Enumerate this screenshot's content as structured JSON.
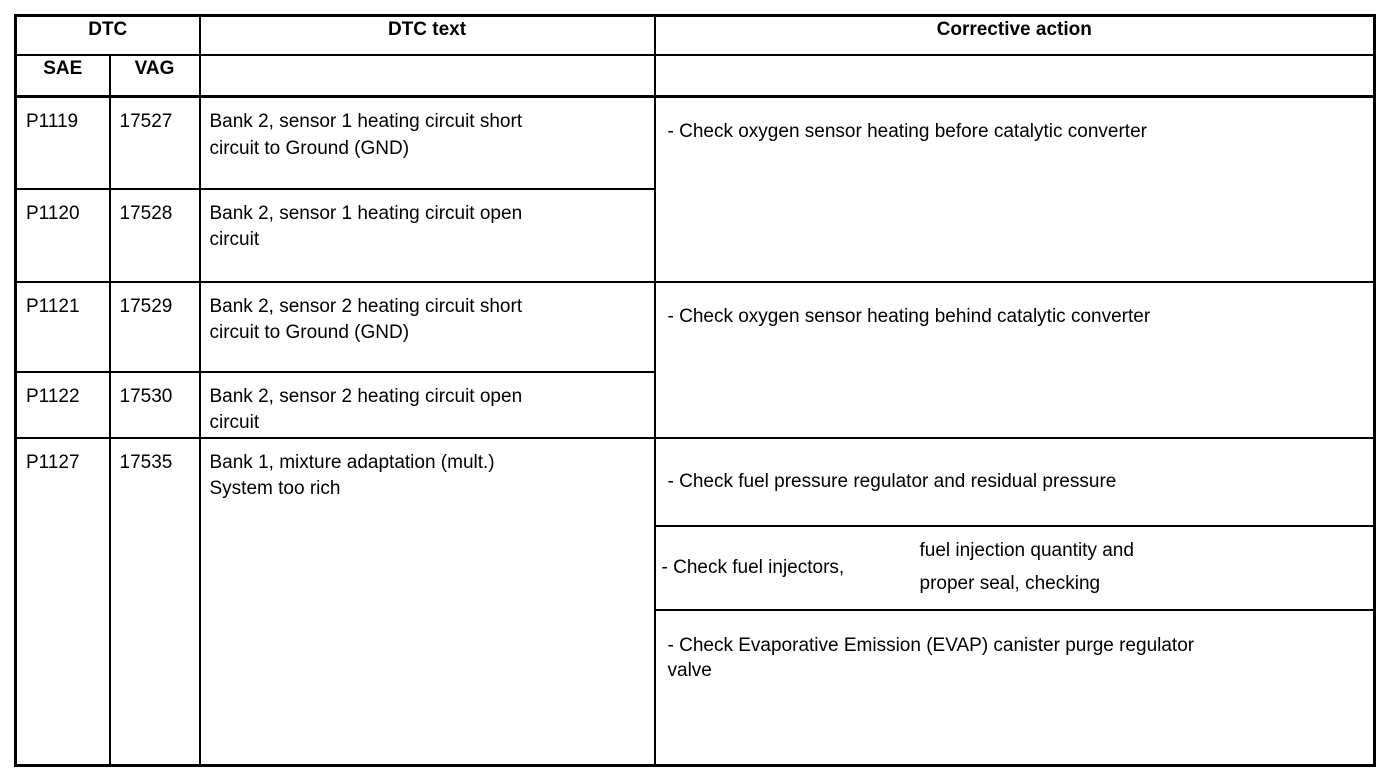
{
  "page": {
    "background_color": "#ffffff",
    "border_color": "#000000",
    "text_color": "#000000"
  },
  "table": {
    "headers": {
      "dtc": "DTC",
      "sae": "SAE",
      "vag": "VAG",
      "dtc_text": "DTC text",
      "corrective_action": "Corrective action"
    },
    "rows": [
      {
        "sae": "P1119",
        "vag": "17527",
        "dtc_text": "Bank 2, sensor 1 heating circuit short\ncircuit to Ground (GND)"
      },
      {
        "sae": "P1120",
        "vag": "17528",
        "dtc_text": "Bank 2, sensor 1 heating circuit open\ncircuit"
      },
      {
        "sae": "P1121",
        "vag": "17529",
        "dtc_text": "Bank 2, sensor 2 heating circuit short\ncircuit to Ground (GND)"
      },
      {
        "sae": "P1122",
        "vag": "17530",
        "dtc_text": "Bank 2, sensor 2 heating circuit open\ncircuit"
      },
      {
        "sae": "P1127",
        "vag": "17535",
        "dtc_text": "Bank 1, mixture adaptation (mult.)\nSystem too rich"
      }
    ],
    "corrective": {
      "oxygen_before": "- Check oxygen sensor heating before catalytic converter",
      "oxygen_behind": "- Check oxygen sensor heating behind catalytic converter",
      "fuel_pressure": "- Check fuel pressure regulator and residual pressure",
      "fuel_injectors_left": "- Check fuel injectors,",
      "fuel_injectors_right": "fuel injection quantity and\nproper seal, checking",
      "evap": "- Check Evaporative Emission (EVAP) canister purge regulator\nvalve"
    }
  }
}
